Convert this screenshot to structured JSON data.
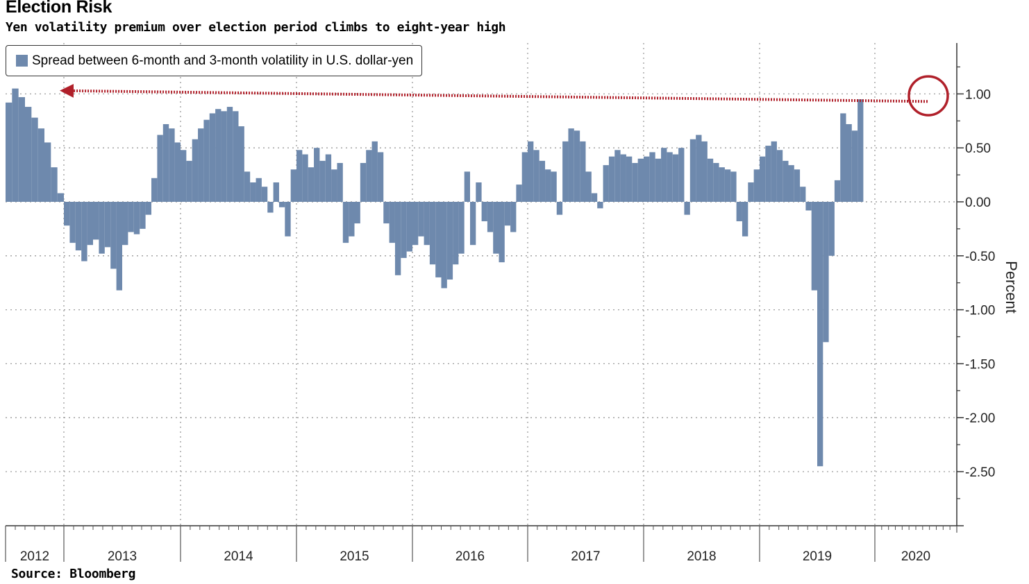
{
  "title": "Election Risk",
  "subtitle": "Yen volatility premium over election period climbs to eight-year high",
  "source": "Source: Bloomberg",
  "colors": {
    "bar": "#6e89ad",
    "highlight": "#b0202a",
    "grid": "#9a9a9a"
  },
  "chart_data": {
    "type": "bar",
    "title": "Election Risk",
    "subtitle": "Yen volatility premium over election period climbs to eight-year high",
    "ylabel": "Percent",
    "xlabel": "",
    "ylim": [
      -3.0,
      1.4
    ],
    "yticks": [
      1.0,
      0.5,
      0.0,
      -0.5,
      -1.0,
      -1.5,
      -2.0,
      -2.5
    ],
    "ytick_labels": [
      "1.00",
      "0.50",
      "0.00",
      "-0.50",
      "-1.00",
      "-1.50",
      "-2.00",
      "-2.50"
    ],
    "x_range": [
      2012.55,
      2020.82
    ],
    "x_tick_labels": [
      "2012",
      "2013",
      "2014",
      "2015",
      "2016",
      "2017",
      "2018",
      "2019",
      "2020"
    ],
    "grid": true,
    "legend_position": "top-left",
    "series": [
      {
        "name": "Spread between 6-month and 3-month volatility in U.S. dollar-yen",
        "points": [
          [
            2012.55,
            0.92
          ],
          [
            2012.6,
            1.05
          ],
          [
            2012.65,
            0.97
          ],
          [
            2012.7,
            0.88
          ],
          [
            2012.75,
            0.78
          ],
          [
            2012.8,
            0.68
          ],
          [
            2012.85,
            0.55
          ],
          [
            2012.9,
            0.32
          ],
          [
            2012.95,
            0.08
          ],
          [
            2013.0,
            -0.22
          ],
          [
            2013.05,
            -0.38
          ],
          [
            2013.1,
            -0.45
          ],
          [
            2013.15,
            -0.55
          ],
          [
            2013.2,
            -0.4
          ],
          [
            2013.25,
            -0.35
          ],
          [
            2013.3,
            -0.48
          ],
          [
            2013.35,
            -0.42
          ],
          [
            2013.4,
            -0.62
          ],
          [
            2013.45,
            -0.82
          ],
          [
            2013.5,
            -0.4
          ],
          [
            2013.55,
            -0.28
          ],
          [
            2013.6,
            -0.3
          ],
          [
            2013.65,
            -0.25
          ],
          [
            2013.7,
            -0.12
          ],
          [
            2013.75,
            0.22
          ],
          [
            2013.8,
            0.62
          ],
          [
            2013.85,
            0.72
          ],
          [
            2013.9,
            0.68
          ],
          [
            2013.95,
            0.55
          ],
          [
            2014.0,
            0.48
          ],
          [
            2014.05,
            0.38
          ],
          [
            2014.1,
            0.58
          ],
          [
            2014.15,
            0.68
          ],
          [
            2014.2,
            0.76
          ],
          [
            2014.25,
            0.82
          ],
          [
            2014.3,
            0.86
          ],
          [
            2014.35,
            0.84
          ],
          [
            2014.4,
            0.88
          ],
          [
            2014.45,
            0.84
          ],
          [
            2014.5,
            0.7
          ],
          [
            2014.55,
            0.28
          ],
          [
            2014.6,
            0.18
          ],
          [
            2014.65,
            0.22
          ],
          [
            2014.7,
            0.14
          ],
          [
            2014.75,
            -0.1
          ],
          [
            2014.8,
            0.18
          ],
          [
            2014.85,
            -0.05
          ],
          [
            2014.9,
            -0.32
          ],
          [
            2014.95,
            0.3
          ],
          [
            2015.0,
            0.48
          ],
          [
            2015.05,
            0.44
          ],
          [
            2015.1,
            0.32
          ],
          [
            2015.15,
            0.5
          ],
          [
            2015.2,
            0.38
          ],
          [
            2015.25,
            0.44
          ],
          [
            2015.3,
            0.3
          ],
          [
            2015.35,
            0.36
          ],
          [
            2015.4,
            -0.38
          ],
          [
            2015.45,
            -0.32
          ],
          [
            2015.5,
            -0.2
          ],
          [
            2015.55,
            0.36
          ],
          [
            2015.6,
            0.48
          ],
          [
            2015.65,
            0.56
          ],
          [
            2015.7,
            0.46
          ],
          [
            2015.75,
            -0.2
          ],
          [
            2015.8,
            -0.38
          ],
          [
            2015.85,
            -0.68
          ],
          [
            2015.9,
            -0.52
          ],
          [
            2015.95,
            -0.46
          ],
          [
            2016.0,
            -0.4
          ],
          [
            2016.05,
            -0.32
          ],
          [
            2016.1,
            -0.4
          ],
          [
            2016.15,
            -0.58
          ],
          [
            2016.2,
            -0.7
          ],
          [
            2016.25,
            -0.8
          ],
          [
            2016.3,
            -0.72
          ],
          [
            2016.35,
            -0.58
          ],
          [
            2016.4,
            -0.48
          ],
          [
            2016.45,
            0.28
          ],
          [
            2016.5,
            -0.4
          ],
          [
            2016.55,
            0.18
          ],
          [
            2016.6,
            -0.18
          ],
          [
            2016.65,
            -0.28
          ],
          [
            2016.7,
            -0.48
          ],
          [
            2016.75,
            -0.56
          ],
          [
            2016.8,
            -0.22
          ],
          [
            2016.85,
            -0.28
          ],
          [
            2016.9,
            0.16
          ],
          [
            2016.95,
            0.46
          ],
          [
            2017.0,
            0.56
          ],
          [
            2017.05,
            0.48
          ],
          [
            2017.1,
            0.38
          ],
          [
            2017.15,
            0.3
          ],
          [
            2017.2,
            0.28
          ],
          [
            2017.25,
            -0.12
          ],
          [
            2017.3,
            0.56
          ],
          [
            2017.35,
            0.68
          ],
          [
            2017.4,
            0.66
          ],
          [
            2017.45,
            0.56
          ],
          [
            2017.5,
            0.28
          ],
          [
            2017.55,
            0.08
          ],
          [
            2017.6,
            -0.06
          ],
          [
            2017.65,
            0.34
          ],
          [
            2017.7,
            0.42
          ],
          [
            2017.75,
            0.48
          ],
          [
            2017.8,
            0.44
          ],
          [
            2017.85,
            0.42
          ],
          [
            2017.9,
            0.36
          ],
          [
            2017.95,
            0.4
          ],
          [
            2018.0,
            0.42
          ],
          [
            2018.05,
            0.46
          ],
          [
            2018.1,
            0.4
          ],
          [
            2018.15,
            0.5
          ],
          [
            2018.2,
            0.46
          ],
          [
            2018.25,
            0.44
          ],
          [
            2018.3,
            0.5
          ],
          [
            2018.35,
            -0.12
          ],
          [
            2018.4,
            0.58
          ],
          [
            2018.45,
            0.62
          ],
          [
            2018.5,
            0.56
          ],
          [
            2018.55,
            0.4
          ],
          [
            2018.6,
            0.36
          ],
          [
            2018.65,
            0.32
          ],
          [
            2018.7,
            0.3
          ],
          [
            2018.75,
            0.28
          ],
          [
            2018.8,
            -0.18
          ],
          [
            2018.85,
            -0.32
          ],
          [
            2018.9,
            0.18
          ],
          [
            2018.95,
            0.3
          ],
          [
            2019.0,
            0.42
          ],
          [
            2019.05,
            0.52
          ],
          [
            2019.1,
            0.56
          ],
          [
            2019.15,
            0.48
          ],
          [
            2019.2,
            0.38
          ],
          [
            2019.25,
            0.34
          ],
          [
            2019.3,
            0.3
          ],
          [
            2019.35,
            0.14
          ],
          [
            2019.4,
            -0.08
          ],
          [
            2019.45,
            -0.82
          ],
          [
            2019.5,
            -2.45
          ],
          [
            2019.55,
            -1.3
          ],
          [
            2019.6,
            -0.5
          ],
          [
            2019.65,
            0.2
          ],
          [
            2019.7,
            0.82
          ],
          [
            2019.75,
            0.72
          ],
          [
            2019.8,
            0.66
          ],
          [
            2019.85,
            0.95
          ]
        ]
      }
    ],
    "annotations": [
      {
        "type": "dotted-arrow",
        "from": [
          2020.82,
          0.93
        ],
        "to": [
          2012.45,
          1.03
        ]
      },
      {
        "type": "circle",
        "center": [
          2020.82,
          0.97
        ]
      }
    ]
  }
}
